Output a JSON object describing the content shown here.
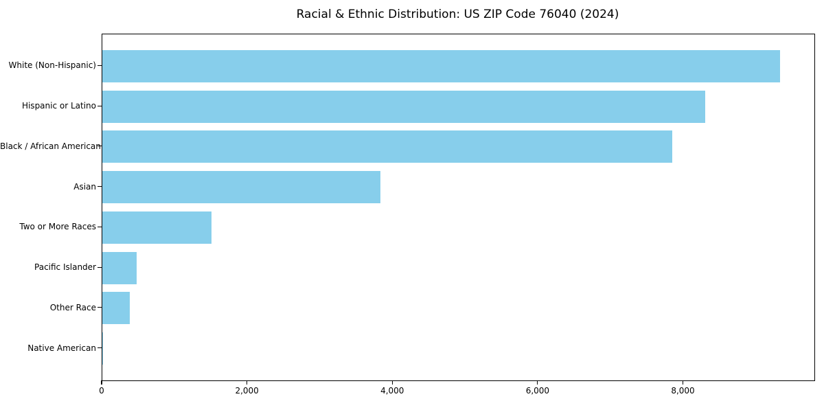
{
  "chart_data": {
    "type": "bar",
    "orientation": "horizontal",
    "title": "Racial & Ethnic Distribution: US ZIP Code 76040 (2024)",
    "categories": [
      "White (Non-Hispanic)",
      "Hispanic or Latino",
      "Black / African American",
      "Asian",
      "Two or More Races",
      "Pacific Islander",
      "Other Race",
      "Native American"
    ],
    "values": [
      9330,
      8300,
      7840,
      3830,
      1500,
      470,
      375,
      10
    ],
    "xlabel": "",
    "ylabel": "",
    "xlim": [
      0,
      9800
    ],
    "x_ticks": [
      0,
      2000,
      4000,
      6000,
      8000
    ],
    "x_tick_labels": [
      "0",
      "2,000",
      "4,000",
      "6,000",
      "8,000"
    ],
    "bar_color": "#87CEEB",
    "grid": false,
    "legend": "none",
    "frame": true
  }
}
